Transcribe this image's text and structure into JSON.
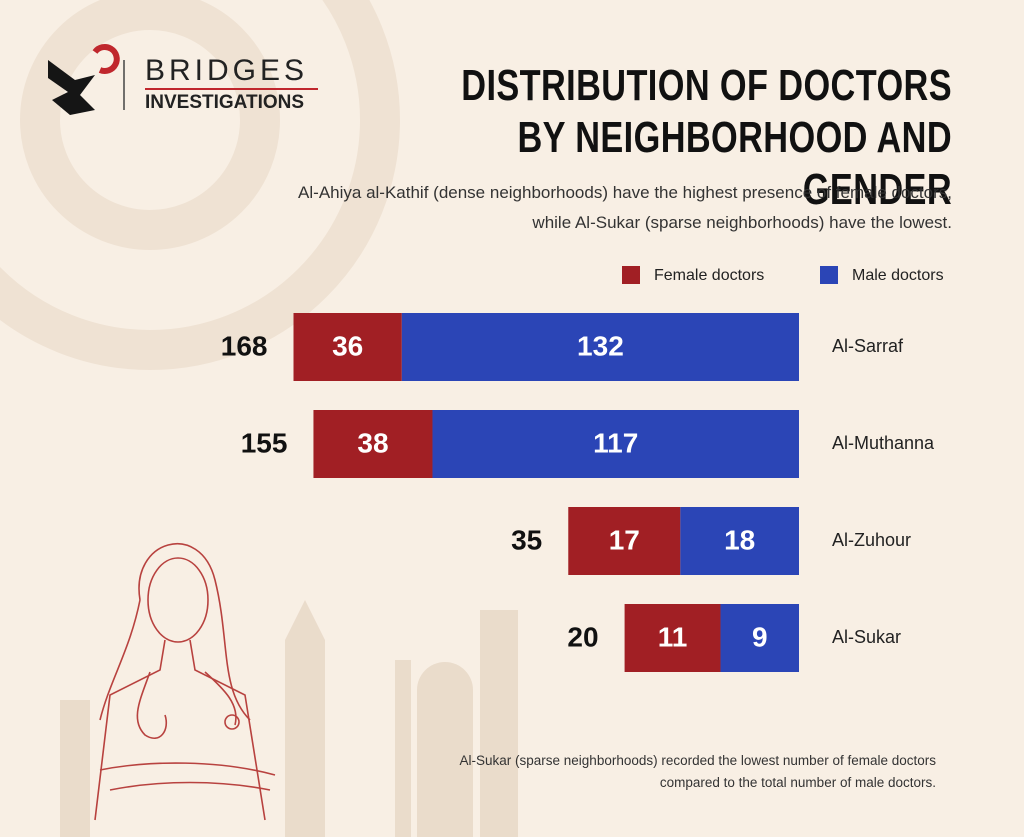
{
  "brand": {
    "name": "BRIDGES",
    "tagline": "INVESTIGATIONS"
  },
  "chart_data": {
    "type": "bar",
    "title": "DISTRIBUTION OF DOCTORS BY NEIGHBORHOOD AND GENDER",
    "subtitle": "Al-Ahiya al-Kathif (dense neighborhoods) have the highest presence of female doctors, while Al-Sukar (sparse neighborhoods) have the lowest.",
    "categories": [
      "Al-Sarraf",
      "Al-Muthanna",
      "Al-Zuhour",
      "Al-Sukar"
    ],
    "series": [
      {
        "name": "Female doctors",
        "color": "#a11f24",
        "values": [
          36,
          38,
          17,
          11
        ]
      },
      {
        "name": "Male doctors",
        "color": "#2b45b6",
        "values": [
          132,
          117,
          18,
          9
        ]
      }
    ],
    "totals": [
      168,
      155,
      35,
      20
    ],
    "note": "Al-Sukar (sparse neighborhoods) recorded the lowest number of female doctors compared to the total number of male doctors."
  }
}
